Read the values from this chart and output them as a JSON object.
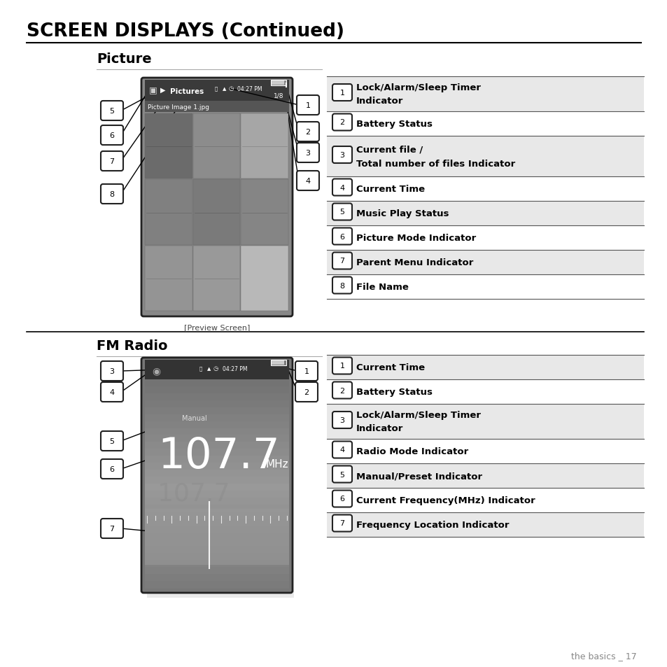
{
  "title": "SCREEN DISPLAYS (Continued)",
  "bg_color": "#ffffff",
  "text_color": "#000000",
  "section1_title": "Picture",
  "section2_title": "FM Radio",
  "picture_labels": {
    "1": [
      "Lock/Alarm/Sleep Timer",
      "Indicator"
    ],
    "2": [
      "Battery Status"
    ],
    "3": [
      "Current file /",
      "Total number of files Indicator"
    ],
    "4": [
      "Current Time"
    ],
    "5": [
      "Music Play Status"
    ],
    "6": [
      "Picture Mode Indicator"
    ],
    "7": [
      "Parent Menu Indicator"
    ],
    "8": [
      "File Name"
    ]
  },
  "radio_labels": {
    "1": [
      "Current Time"
    ],
    "2": [
      "Battery Status"
    ],
    "3": [
      "Lock/Alarm/Sleep Timer",
      "Indicator"
    ],
    "4": [
      "Radio Mode Indicator"
    ],
    "5": [
      "Manual/Preset Indicator"
    ],
    "6": [
      "Current Frequency(MHz) Indicator"
    ],
    "7": [
      "Frequency Location Indicator"
    ]
  },
  "preview_screen_caption": "[Preview Screen]",
  "footer_text": "the basics _ 17"
}
